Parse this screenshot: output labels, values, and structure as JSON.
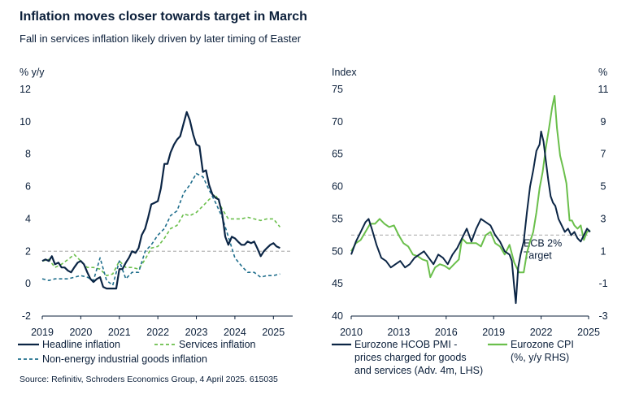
{
  "header": {
    "title": "Inflation moves closer towards target in March",
    "subtitle": "Fall in services inflation likely driven by later timing of Easter"
  },
  "footer": {
    "source": "Source: Refinitiv, Schroders Economics Group, 4 April 2025. 615035"
  },
  "colors": {
    "navy": "#0b2545",
    "green": "#6abf4b",
    "teal": "#1f6e8c",
    "ref": "#b8b8b8"
  },
  "chart_data": [
    {
      "type": "line",
      "ylabel": "% y/y",
      "ylim": [
        -2,
        12
      ],
      "yticks": [
        -2,
        0,
        2,
        4,
        6,
        8,
        10,
        12
      ],
      "xlim": [
        2019.0,
        2025.5
      ],
      "xticks": [
        2019,
        2020,
        2021,
        2022,
        2023,
        2024,
        2025
      ],
      "reference_line": 2,
      "legend": "bottom",
      "series": [
        {
          "name": "Headline inflation",
          "color": "#0b2545",
          "style": "solid",
          "x": [
            2019.0,
            2019.08,
            2019.17,
            2019.25,
            2019.33,
            2019.42,
            2019.5,
            2019.58,
            2019.67,
            2019.75,
            2019.83,
            2019.92,
            2020.0,
            2020.08,
            2020.17,
            2020.25,
            2020.33,
            2020.42,
            2020.5,
            2020.58,
            2020.67,
            2020.75,
            2020.83,
            2020.92,
            2021.0,
            2021.08,
            2021.17,
            2021.25,
            2021.33,
            2021.42,
            2021.5,
            2021.58,
            2021.67,
            2021.75,
            2021.83,
            2021.92,
            2022.0,
            2022.08,
            2022.17,
            2022.25,
            2022.33,
            2022.42,
            2022.5,
            2022.58,
            2022.67,
            2022.75,
            2022.83,
            2022.92,
            2023.0,
            2023.08,
            2023.17,
            2023.25,
            2023.33,
            2023.42,
            2023.5,
            2023.58,
            2023.67,
            2023.75,
            2023.83,
            2023.92,
            2024.0,
            2024.08,
            2024.17,
            2024.25,
            2024.33,
            2024.42,
            2024.5,
            2024.58,
            2024.67,
            2024.75,
            2024.83,
            2024.92,
            2025.0,
            2025.08,
            2025.17
          ],
          "y": [
            1.4,
            1.5,
            1.4,
            1.7,
            1.2,
            1.3,
            1.0,
            1.0,
            0.8,
            0.7,
            1.0,
            1.3,
            1.4,
            1.2,
            0.7,
            0.3,
            0.1,
            0.3,
            0.4,
            -0.2,
            -0.3,
            -0.3,
            -0.3,
            -0.3,
            0.9,
            0.9,
            1.3,
            1.6,
            2.0,
            1.9,
            2.2,
            3.0,
            3.4,
            4.1,
            4.9,
            5.0,
            5.1,
            5.9,
            7.4,
            7.4,
            8.1,
            8.6,
            8.9,
            9.1,
            9.9,
            10.6,
            10.1,
            9.2,
            8.6,
            8.5,
            6.9,
            7.0,
            6.1,
            5.5,
            5.3,
            5.2,
            4.3,
            2.9,
            2.4,
            2.9,
            2.8,
            2.6,
            2.4,
            2.4,
            2.6,
            2.5,
            2.6,
            2.2,
            1.7,
            2.0,
            2.2,
            2.4,
            2.5,
            2.3,
            2.2
          ]
        },
        {
          "name": "Services inflation",
          "color": "#6abf4b",
          "style": "dashed",
          "x": [
            2019.0,
            2019.17,
            2019.33,
            2019.5,
            2019.67,
            2019.83,
            2020.0,
            2020.17,
            2020.33,
            2020.5,
            2020.67,
            2020.83,
            2021.0,
            2021.17,
            2021.33,
            2021.5,
            2021.67,
            2021.83,
            2022.0,
            2022.17,
            2022.33,
            2022.5,
            2022.67,
            2022.83,
            2023.0,
            2023.17,
            2023.33,
            2023.5,
            2023.67,
            2023.83,
            2024.0,
            2024.17,
            2024.33,
            2024.5,
            2024.67,
            2024.83,
            2025.0,
            2025.17
          ],
          "y": [
            1.4,
            1.5,
            1.0,
            1.2,
            1.5,
            1.8,
            1.4,
            1.0,
            1.0,
            0.9,
            0.5,
            0.6,
            1.4,
            1.0,
            1.0,
            0.9,
            1.5,
            2.2,
            2.3,
            2.8,
            3.4,
            3.6,
            4.3,
            4.2,
            4.4,
            4.8,
            5.2,
            5.5,
            4.6,
            4.0,
            4.0,
            4.0,
            4.1,
            4.0,
            3.9,
            4.0,
            4.0,
            3.5
          ]
        },
        {
          "name": "Non-energy industrial goods inflation",
          "color": "#1f6e8c",
          "style": "dashed",
          "x": [
            2019.0,
            2019.17,
            2019.33,
            2019.5,
            2019.67,
            2019.83,
            2020.0,
            2020.17,
            2020.33,
            2020.5,
            2020.67,
            2020.83,
            2021.0,
            2021.17,
            2021.33,
            2021.5,
            2021.67,
            2021.83,
            2022.0,
            2022.17,
            2022.33,
            2022.5,
            2022.67,
            2022.83,
            2023.0,
            2023.17,
            2023.33,
            2023.5,
            2023.67,
            2023.83,
            2024.0,
            2024.17,
            2024.33,
            2024.5,
            2024.67,
            2024.83,
            2025.0,
            2025.17
          ],
          "y": [
            0.3,
            0.2,
            0.3,
            0.3,
            0.3,
            0.4,
            0.5,
            0.4,
            0.2,
            1.6,
            0.2,
            -0.1,
            1.4,
            0.3,
            0.7,
            0.7,
            2.0,
            2.4,
            3.0,
            3.4,
            4.2,
            4.5,
            5.6,
            6.1,
            6.8,
            6.6,
            5.8,
            5.0,
            4.1,
            2.9,
            1.6,
            1.1,
            0.7,
            0.7,
            0.4,
            0.5,
            0.5,
            0.6
          ]
        }
      ]
    },
    {
      "type": "line",
      "ylabel_left": "Index",
      "ylabel_right": "%",
      "ylim_left": [
        40,
        75
      ],
      "yticks_left": [
        40,
        45,
        50,
        55,
        60,
        65,
        70,
        75
      ],
      "ylim_right": [
        -3,
        11
      ],
      "yticks_right": [
        -3,
        -1,
        1,
        3,
        5,
        7,
        9,
        11
      ],
      "xlim": [
        2010,
        2025
      ],
      "xticks": [
        2010,
        2013,
        2016,
        2019,
        2022,
        2025
      ],
      "reference_line_right": 2,
      "annotation": "ECB 2% Target",
      "legend": "bottom",
      "series": [
        {
          "name": "Eurozone HCOB PMI - prices charged for goods and services (Adv. 4m, LHS)",
          "axis": "left",
          "color": "#0b2545",
          "style": "solid",
          "x": [
            2010.0,
            2010.3,
            2010.6,
            2010.9,
            2011.1,
            2011.3,
            2011.6,
            2011.9,
            2012.2,
            2012.5,
            2012.8,
            2013.1,
            2013.4,
            2013.7,
            2014.0,
            2014.3,
            2014.6,
            2014.9,
            2015.2,
            2015.5,
            2015.8,
            2016.1,
            2016.4,
            2016.7,
            2017.0,
            2017.3,
            2017.6,
            2017.9,
            2018.2,
            2018.5,
            2018.8,
            2019.1,
            2019.4,
            2019.7,
            2020.0,
            2020.15,
            2020.3,
            2020.4,
            2020.55,
            2020.7,
            2020.9,
            2021.1,
            2021.3,
            2021.5,
            2021.7,
            2021.9,
            2022.0,
            2022.15,
            2022.3,
            2022.45,
            2022.6,
            2022.75,
            2022.9,
            2023.1,
            2023.3,
            2023.5,
            2023.7,
            2023.9,
            2024.1,
            2024.3,
            2024.5,
            2024.7,
            2024.9,
            2025.1
          ],
          "y": [
            49.5,
            51.5,
            53.0,
            54.5,
            55.0,
            53.5,
            51.0,
            49.0,
            48.5,
            47.5,
            48.0,
            48.5,
            47.5,
            48.0,
            49.0,
            49.5,
            50.0,
            49.0,
            48.0,
            49.5,
            49.0,
            48.0,
            49.5,
            50.5,
            52.0,
            53.5,
            51.5,
            53.5,
            55.0,
            54.5,
            54.0,
            52.5,
            51.5,
            50.0,
            49.5,
            48.5,
            44.5,
            42.0,
            47.5,
            49.5,
            51.5,
            56.0,
            60.0,
            62.5,
            65.5,
            66.5,
            68.5,
            67.0,
            64.0,
            61.0,
            58.5,
            57.5,
            57.0,
            55.0,
            54.0,
            53.0,
            53.5,
            52.5,
            53.0,
            52.0,
            51.5,
            52.5,
            53.5,
            53.0
          ]
        },
        {
          "name": "Eurozone CPI (%, y/y RHS)",
          "axis": "right",
          "color": "#6abf4b",
          "style": "solid",
          "x": [
            2010.0,
            2010.3,
            2010.6,
            2010.9,
            2011.2,
            2011.5,
            2011.8,
            2012.1,
            2012.4,
            2012.7,
            2013.0,
            2013.3,
            2013.6,
            2013.9,
            2014.2,
            2014.5,
            2014.8,
            2015.0,
            2015.3,
            2015.6,
            2015.9,
            2016.2,
            2016.5,
            2016.8,
            2017.0,
            2017.3,
            2017.6,
            2017.9,
            2018.2,
            2018.5,
            2018.8,
            2019.1,
            2019.4,
            2019.7,
            2020.0,
            2020.3,
            2020.6,
            2020.9,
            2021.1,
            2021.3,
            2021.5,
            2021.7,
            2021.9,
            2022.1,
            2022.3,
            2022.5,
            2022.7,
            2022.85,
            2023.0,
            2023.2,
            2023.4,
            2023.6,
            2023.8,
            2023.95,
            2024.1,
            2024.3,
            2024.5,
            2024.7,
            2024.9,
            2025.1
          ],
          "y": [
            1.0,
            1.5,
            1.7,
            2.2,
            2.7,
            2.7,
            3.0,
            2.7,
            2.5,
            2.6,
            2.0,
            1.5,
            1.3,
            0.8,
            0.7,
            0.5,
            0.4,
            -0.6,
            0.0,
            0.2,
            0.1,
            -0.1,
            0.2,
            0.5,
            1.8,
            1.5,
            1.5,
            1.5,
            1.3,
            2.0,
            2.2,
            1.5,
            1.3,
            0.8,
            1.4,
            0.3,
            -0.3,
            -0.3,
            0.9,
            1.6,
            2.2,
            3.4,
            4.9,
            5.9,
            7.4,
            8.6,
            9.9,
            10.6,
            8.6,
            6.9,
            6.1,
            5.2,
            2.9,
            2.9,
            2.6,
            2.4,
            2.6,
            1.7,
            2.2,
            2.3
          ]
        }
      ]
    }
  ]
}
